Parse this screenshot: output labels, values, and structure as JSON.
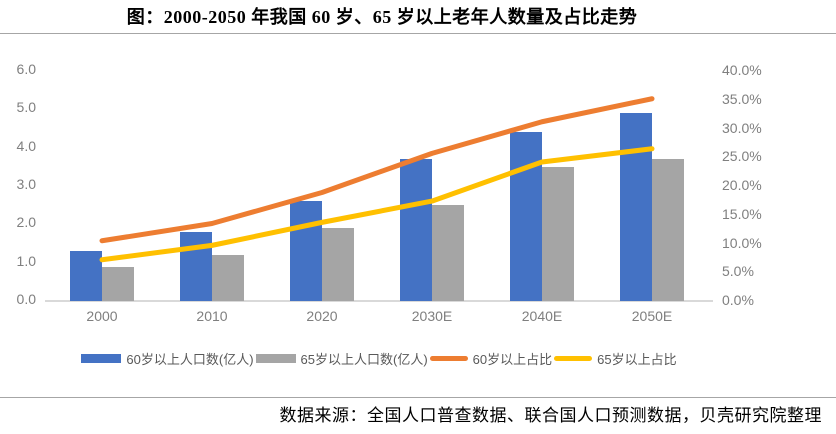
{
  "title": "图：2000-2050 年我国 60 岁、65 岁以上老年人数量及占比走势",
  "source_note": "数据来源：全国人口普查数据、联合国人口预测数据，贝壳研究院整理",
  "colors": {
    "bar_60plus": "#4472C4",
    "bar_65plus": "#A5A5A5",
    "line_60plus": "#ED7D31",
    "line_65plus": "#FFC000",
    "axis_text": "#7f7f7f",
    "legend_text": "#595959",
    "baseline": "#d9d9d9",
    "rule": "#a6a6a6"
  },
  "chart_data": {
    "type": "bar",
    "title": "图：2000-2050 年我国 60 岁、65 岁以上老年人数量及占比走势",
    "categories": [
      "2000",
      "2010",
      "2020",
      "2030E",
      "2040E",
      "2050E"
    ],
    "series": [
      {
        "name": "60岁以上人口数(亿人)",
        "type": "bar",
        "axis": "left",
        "color": "#4472C4",
        "values": [
          1.3,
          1.8,
          2.6,
          3.7,
          4.4,
          4.9
        ]
      },
      {
        "name": "65岁以上人口数(亿人)",
        "type": "bar",
        "axis": "left",
        "color": "#A5A5A5",
        "values": [
          0.9,
          1.2,
          1.9,
          2.5,
          3.5,
          3.7
        ]
      },
      {
        "name": "60岁以上占比",
        "type": "line",
        "axis": "right",
        "color": "#ED7D31",
        "values": [
          10.3,
          13.3,
          18.7,
          25.5,
          31.0,
          35.0
        ]
      },
      {
        "name": "65岁以上占比",
        "type": "line",
        "axis": "right",
        "color": "#FFC000",
        "values": [
          7.0,
          9.5,
          13.5,
          17.2,
          24.0,
          26.3
        ]
      }
    ],
    "left_axis": {
      "min": 0,
      "max": 6,
      "step": 1,
      "ticks": [
        "6.0",
        "5.0",
        "4.0",
        "3.0",
        "2.0",
        "1.0",
        "0.0"
      ]
    },
    "right_axis": {
      "min": 0,
      "max": 40,
      "step": 5,
      "ticks": [
        "40.0%",
        "35.0%",
        "30.0%",
        "25.0%",
        "20.0%",
        "15.0%",
        "10.0%",
        "5.0%",
        "0.0%"
      ]
    },
    "grid": false,
    "legend_position": "bottom"
  }
}
